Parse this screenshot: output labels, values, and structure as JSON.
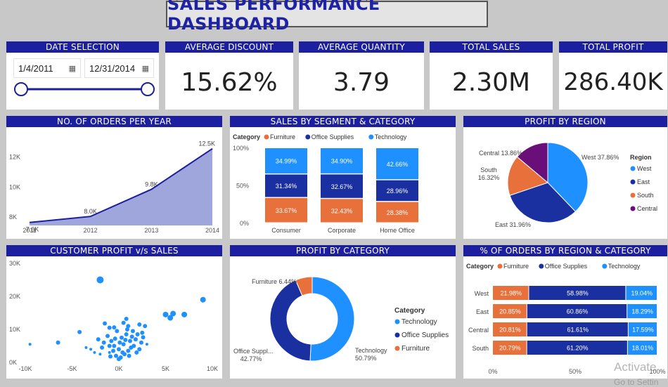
{
  "title": "SALES PERFORMANCE DASHBOARD",
  "date_selection": {
    "header": "DATE SELECTION",
    "start": "1/4/2011",
    "end": "12/31/2014",
    "calendar_icon": "calendar-icon"
  },
  "kpis": [
    {
      "label": "AVERAGE DISCOUNT",
      "value": "15.62%"
    },
    {
      "label": "AVERAGE QUANTITY",
      "value": "3.79"
    },
    {
      "label": "TOTAL SALES",
      "value": "2.30M"
    },
    {
      "label": "TOTAL PROFIT",
      "value": "286.40K"
    }
  ],
  "colors": {
    "header": "#1b1fa0",
    "furniture": "#e8703a",
    "office": "#1a2fa0",
    "technology": "#1e90ff",
    "central": "#6a0f7a",
    "area": "#9fa6dc",
    "line": "#1b1fa0"
  },
  "watermark": {
    "line1": "Activate",
    "line2": "Go to Settin"
  },
  "chart_data": [
    {
      "id": "orders",
      "type": "area",
      "title": "NO. OF ORDERS PER YEAR",
      "x": [
        "2011",
        "2012",
        "2013",
        "2014"
      ],
      "values": [
        7.6,
        8.0,
        9.8,
        12.5
      ],
      "value_labels": [
        "7.6K",
        "8.0K",
        "9.8K",
        "12.5K"
      ],
      "yticks": [
        "8K",
        "10K",
        "12K"
      ],
      "ytick_values": [
        8,
        10,
        12
      ],
      "ylim": [
        7.4,
        13.0
      ],
      "grid": false
    },
    {
      "id": "segment",
      "type": "bar",
      "title": "SALES BY SEGMENT & CATEGORY",
      "legend_title": "Category",
      "categories": [
        "Consumer",
        "Corporate",
        "Home Office"
      ],
      "series": [
        {
          "name": "Furniture",
          "values": [
            33.67,
            32.43,
            28.38
          ],
          "labels": [
            "33.67%",
            "32.43%",
            "28.38%"
          ]
        },
        {
          "name": "Office Supplies",
          "values": [
            31.34,
            32.67,
            28.96
          ],
          "labels": [
            "31.34%",
            "32.67%",
            "28.96%"
          ]
        },
        {
          "name": "Technology",
          "values": [
            34.99,
            34.9,
            42.66
          ],
          "labels": [
            "34.99%",
            "34.90%",
            "42.66%"
          ]
        }
      ],
      "yticks": [
        "0%",
        "50%",
        "100%"
      ],
      "ytick_values": [
        0,
        50,
        100
      ],
      "stacked": true
    },
    {
      "id": "region",
      "type": "pie",
      "title": "PROFIT BY REGION",
      "legend_title": "Region",
      "slices": [
        {
          "name": "West",
          "value": 37.86,
          "label": "West 37.86%"
        },
        {
          "name": "East",
          "value": 31.96,
          "label": "East 31.96%"
        },
        {
          "name": "South",
          "value": 16.32,
          "label": "South 16.32%"
        },
        {
          "name": "Central",
          "value": 13.86,
          "label": "Central 13.86%"
        }
      ]
    },
    {
      "id": "scatter",
      "type": "scatter",
      "title": "CUSTOMER PROFIT v/s SALES",
      "xticks": [
        "-10K",
        "-5K",
        "0K",
        "5K",
        "10K"
      ],
      "xtick_values": [
        -10,
        -5,
        0,
        5,
        10
      ],
      "yticks": [
        "0K",
        "10K",
        "20K",
        "30K"
      ],
      "ytick_values": [
        0,
        10,
        20,
        30
      ],
      "xlim": [
        -10,
        10
      ],
      "ylim": [
        0,
        30
      ],
      "points": [
        [
          -2.0,
          25.0,
          5
        ],
        [
          9.0,
          19.0,
          4
        ],
        [
          7.0,
          14.5,
          4
        ],
        [
          5.0,
          14.5,
          4
        ],
        [
          5.8,
          14.8,
          4
        ],
        [
          5.5,
          13.5,
          4
        ],
        [
          -6.5,
          6.0,
          3
        ],
        [
          -4.2,
          9.2,
          3
        ],
        [
          -1.5,
          11.8,
          3
        ],
        [
          -0.5,
          10.6,
          3
        ],
        [
          0.8,
          13.2,
          3
        ],
        [
          1.0,
          11.0,
          3
        ],
        [
          2.2,
          11.5,
          3
        ],
        [
          2.8,
          11.0,
          3
        ],
        [
          -9.5,
          5.5,
          2
        ],
        [
          -3.0,
          4.0,
          2
        ],
        [
          -3.5,
          4.5,
          2
        ],
        [
          -2.0,
          2.5,
          2
        ],
        [
          -1.0,
          3.0,
          2
        ],
        [
          -0.5,
          5.0,
          3
        ],
        [
          -1.2,
          8.0,
          3
        ],
        [
          -0.8,
          6.5,
          3
        ],
        [
          0.0,
          4.0,
          3
        ],
        [
          0.3,
          7.5,
          3
        ],
        [
          0.5,
          5.5,
          3
        ],
        [
          0.8,
          8.5,
          3
        ],
        [
          1.2,
          6.5,
          3
        ],
        [
          1.5,
          9.5,
          3
        ],
        [
          1.8,
          7.0,
          3
        ],
        [
          2.0,
          8.5,
          3
        ],
        [
          2.5,
          9.0,
          3
        ],
        [
          2.4,
          6.0,
          3
        ],
        [
          1.0,
          3.5,
          3
        ],
        [
          -0.3,
          2.0,
          3
        ],
        [
          0.2,
          1.5,
          3
        ],
        [
          0.6,
          2.5,
          3
        ],
        [
          1.3,
          4.5,
          3
        ],
        [
          -1.6,
          6.0,
          3
        ],
        [
          -2.2,
          7.0,
          3
        ],
        [
          -0.2,
          9.5,
          3
        ],
        [
          0.9,
          10.0,
          3
        ],
        [
          1.6,
          5.0,
          3
        ],
        [
          2.2,
          4.0,
          3
        ],
        [
          -0.6,
          3.5,
          3
        ],
        [
          0.1,
          6.0,
          3
        ],
        [
          0.4,
          3.0,
          3
        ],
        [
          1.1,
          2.0,
          3
        ],
        [
          -1.0,
          5.0,
          3
        ],
        [
          -1.8,
          4.5,
          3
        ],
        [
          0.7,
          6.8,
          3
        ],
        [
          1.4,
          7.8,
          3
        ],
        [
          -0.4,
          7.2,
          3
        ],
        [
          2.6,
          7.6,
          3
        ],
        [
          0.0,
          1.0,
          3
        ],
        [
          -0.9,
          1.8,
          3
        ],
        [
          1.9,
          3.0,
          3
        ],
        [
          3.0,
          5.5,
          2
        ],
        [
          -2.6,
          3.0,
          2
        ],
        [
          0.5,
          12.0,
          3
        ],
        [
          -1.0,
          10.5,
          3
        ]
      ]
    },
    {
      "id": "category",
      "type": "pie",
      "donut": true,
      "title": "PROFIT BY CATEGORY",
      "legend_title": "Category",
      "slices": [
        {
          "name": "Technology",
          "value": 50.79,
          "label": "Technology 50.79%"
        },
        {
          "name": "Office Supplies",
          "value": 42.77,
          "label": "Office Suppl... 42.77%"
        },
        {
          "name": "Furniture",
          "value": 6.44,
          "label": "Furniture 6.44%"
        }
      ]
    },
    {
      "id": "orders_region",
      "type": "bar",
      "orientation": "horizontal",
      "stacked": true,
      "title": "% OF ORDERS BY REGION & CATEGORY",
      "legend_title": "Category",
      "categories": [
        "West",
        "East",
        "Central",
        "South"
      ],
      "series": [
        {
          "name": "Furniture",
          "values": [
            21.98,
            20.85,
            20.81,
            20.79
          ],
          "labels": [
            "21.98%",
            "20.85%",
            "20.81%",
            "20.79%"
          ]
        },
        {
          "name": "Office Supplies",
          "values": [
            58.98,
            60.86,
            61.61,
            61.2
          ],
          "labels": [
            "58.98%",
            "60.86%",
            "61.61%",
            "61.20%"
          ]
        },
        {
          "name": "Technology",
          "values": [
            19.04,
            18.29,
            17.59,
            18.01
          ],
          "labels": [
            "19.04%",
            "18.29%",
            "17.59%",
            "18.01%"
          ]
        }
      ],
      "xticks": [
        "0%",
        "50%",
        "100%"
      ],
      "xtick_values": [
        0,
        50,
        100
      ]
    }
  ]
}
